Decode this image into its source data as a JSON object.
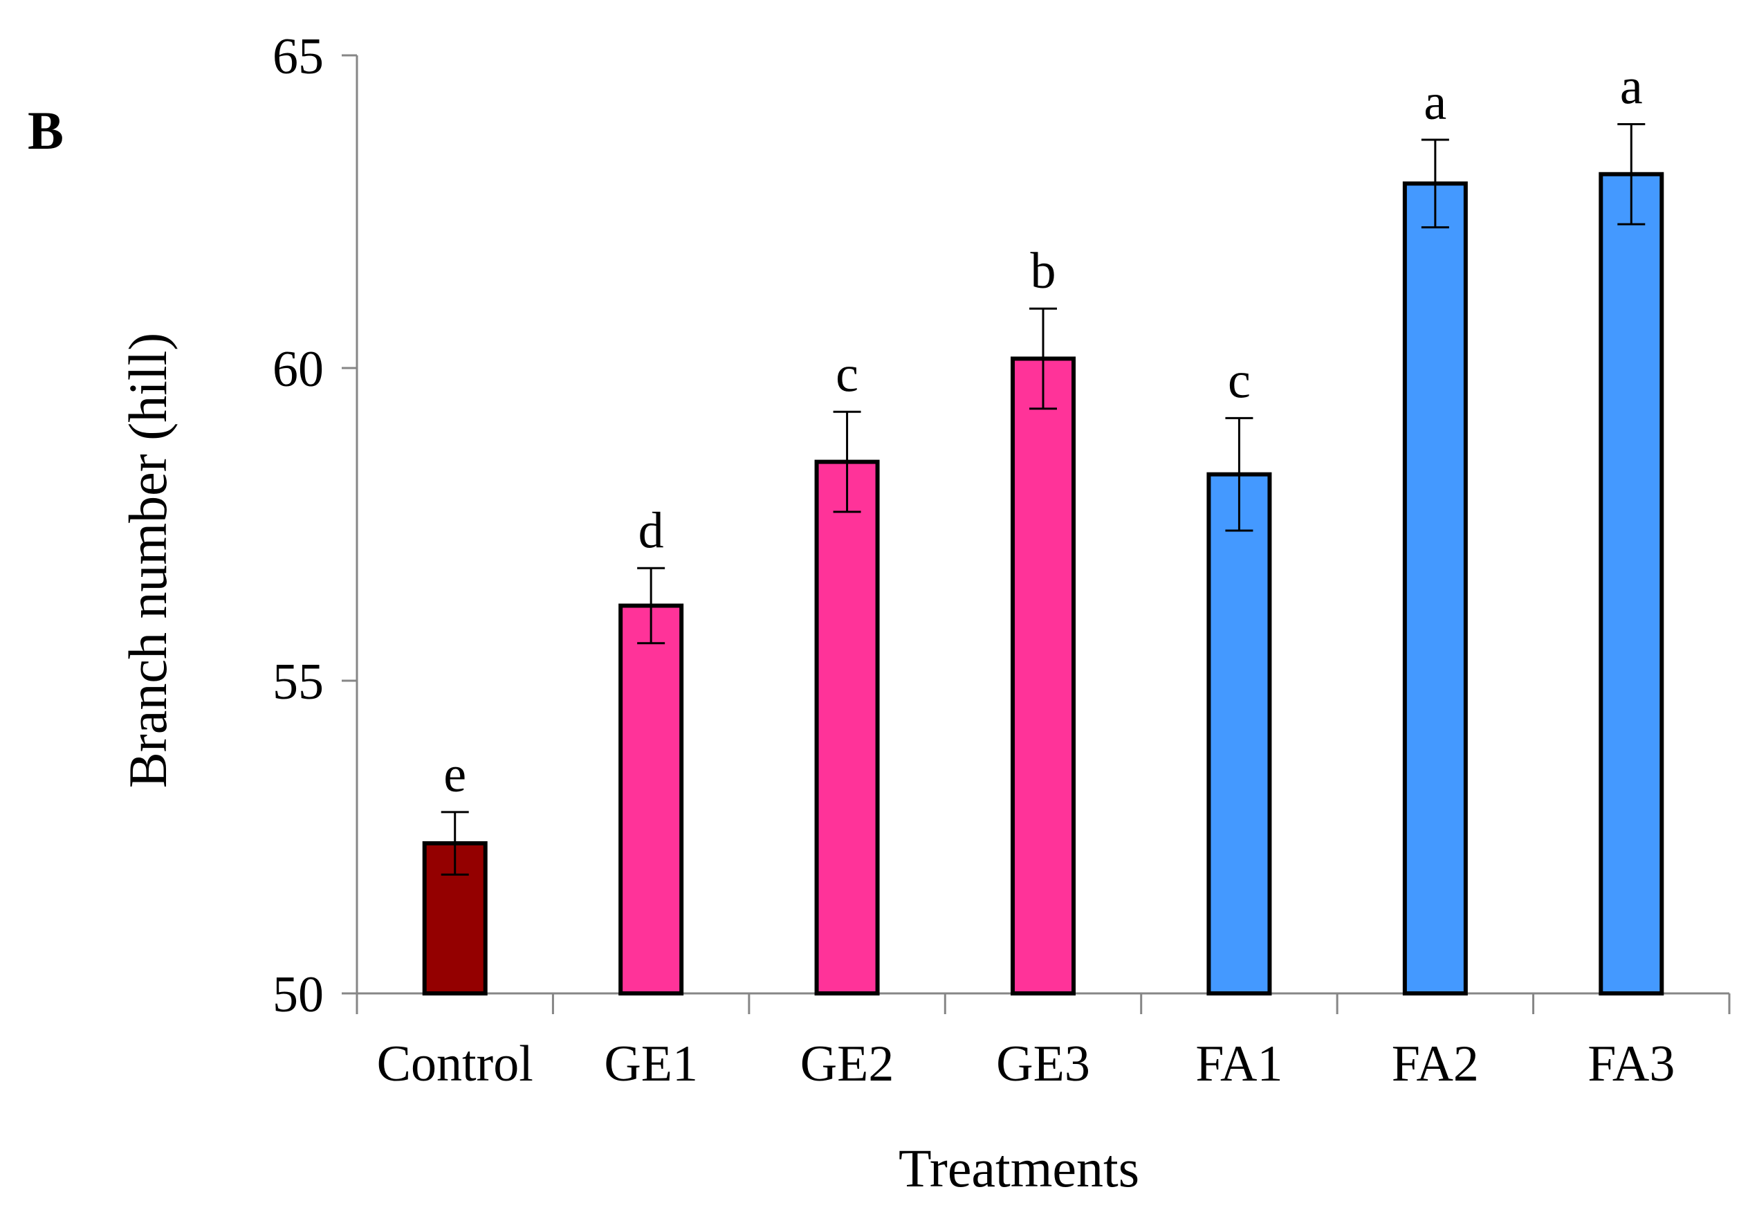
{
  "chart_data": {
    "type": "bar",
    "panel_label": "B",
    "title": "",
    "xlabel": "Treatments",
    "ylabel": "Branch number (hill)",
    "ylim": [
      50,
      65
    ],
    "yticks": [
      50,
      55,
      60,
      65
    ],
    "grid": false,
    "categories": [
      "Control",
      "GE1",
      "GE2",
      "GE3",
      "FA1",
      "FA2",
      "FA3"
    ],
    "values": [
      52.4,
      56.2,
      58.5,
      60.15,
      58.3,
      62.95,
      63.1
    ],
    "errors": [
      0.5,
      0.6,
      0.8,
      0.8,
      0.9,
      0.7,
      0.8
    ],
    "significance_letters": [
      "e",
      "d",
      "c",
      "b",
      "c",
      "a",
      "a"
    ],
    "bar_colors": [
      "#940000",
      "#FF3399",
      "#FF3399",
      "#FF3399",
      "#4499FF",
      "#4499FF",
      "#4499FF"
    ],
    "axis_color": "#868686",
    "bar_edge_color": "#000000"
  }
}
